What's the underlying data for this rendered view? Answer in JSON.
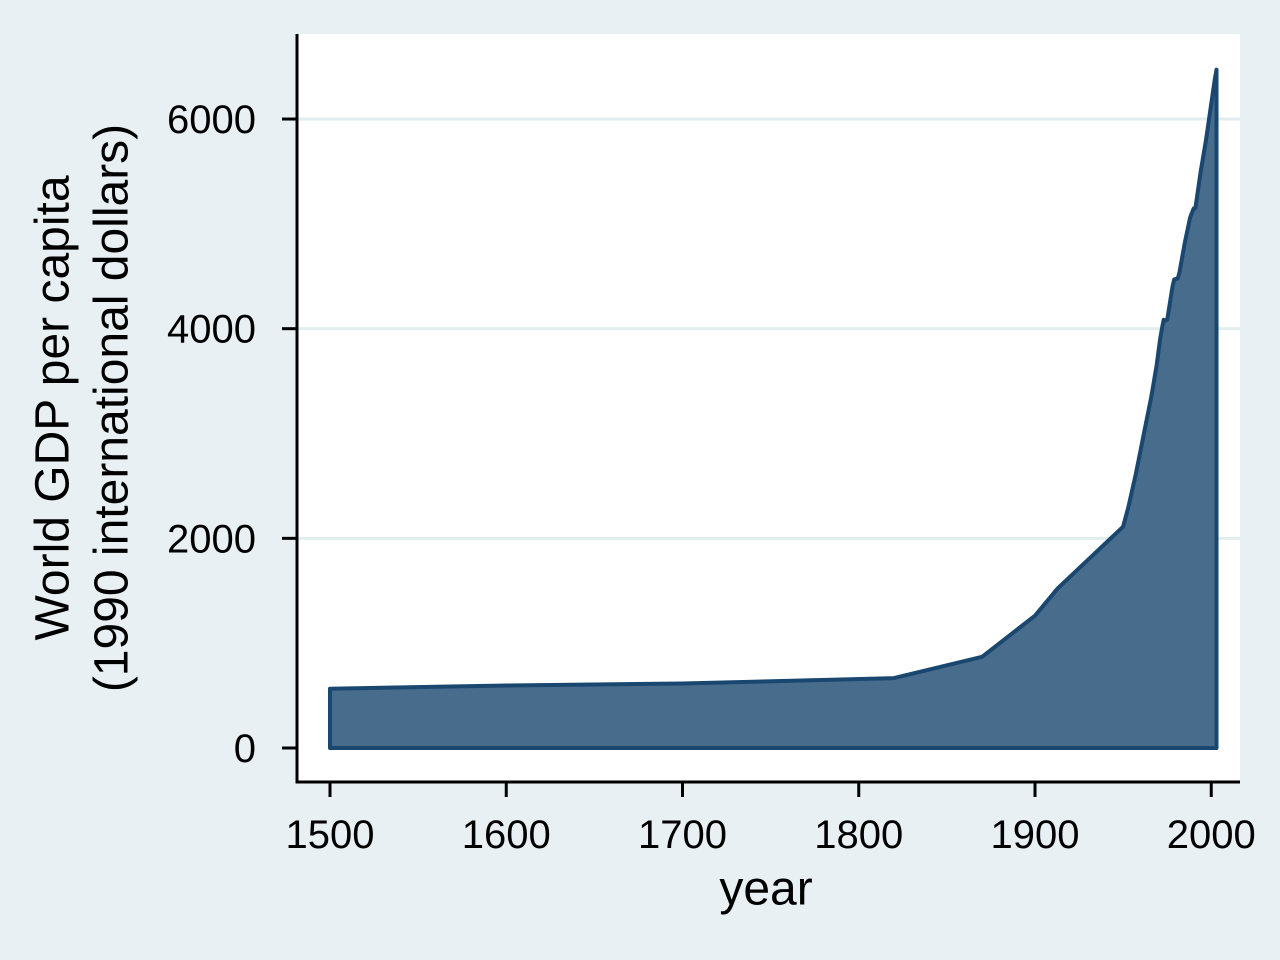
{
  "chart_data": {
    "type": "area",
    "title": "",
    "xlabel": "year",
    "ylabel_line1": "World GDP per capita",
    "ylabel_line2": "(1990 international dollars)",
    "x_ticks": [
      1500,
      1600,
      1700,
      1800,
      1900,
      2000
    ],
    "y_ticks": [
      0,
      2000,
      4000,
      6000
    ],
    "grid_values": [
      2000,
      4000,
      6000
    ],
    "xlim": [
      1481,
      2017
    ],
    "ylim": [
      -325,
      6810
    ],
    "grid": true,
    "legend_position": "none",
    "series": [
      {
        "name": "World GDP per capita (1990 international dollars)",
        "baseline_value": 0,
        "points": [
          [
            1500,
            566
          ],
          [
            1600,
            596
          ],
          [
            1700,
            615
          ],
          [
            1820,
            667
          ],
          [
            1870,
            870
          ],
          [
            1900,
            1262
          ],
          [
            1913,
            1524
          ],
          [
            1950,
            2111
          ],
          [
            1953,
            2300
          ],
          [
            1957,
            2600
          ],
          [
            1960,
            2850
          ],
          [
            1963,
            3100
          ],
          [
            1966,
            3350
          ],
          [
            1969,
            3650
          ],
          [
            1971,
            3900
          ],
          [
            1972,
            4000
          ],
          [
            1973,
            4085
          ],
          [
            1974,
            4078
          ],
          [
            1975,
            4085
          ],
          [
            1978,
            4400
          ],
          [
            1979,
            4470
          ],
          [
            1981,
            4480
          ],
          [
            1982,
            4540
          ],
          [
            1985,
            4820
          ],
          [
            1988,
            5060
          ],
          [
            1990,
            5145
          ],
          [
            1991,
            5150
          ],
          [
            1994,
            5500
          ],
          [
            1997,
            5800
          ],
          [
            2000,
            6150
          ],
          [
            2002,
            6380
          ],
          [
            2003,
            6470
          ]
        ]
      }
    ],
    "colors": {
      "background": "#e9f0f3",
      "plot_background": "#ffffff",
      "gridline": "#e2edef",
      "area_fill": "#486c8c",
      "area_stroke": "#1a476f",
      "axis": "#000000",
      "text": "#000000"
    }
  }
}
